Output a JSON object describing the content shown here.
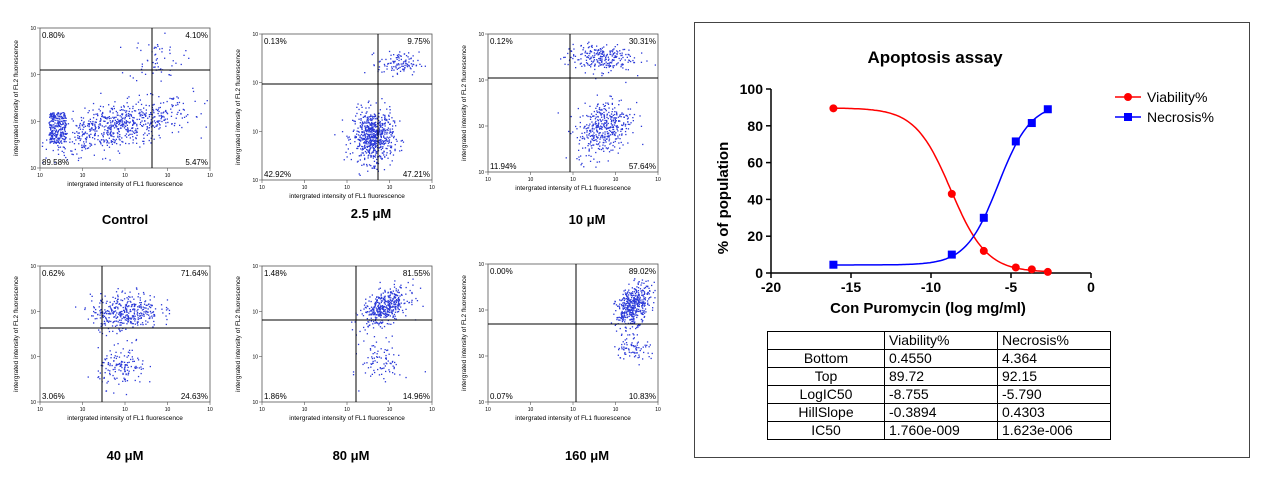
{
  "flow_panels": [
    {
      "caption": "Control",
      "q_ul": "0.80%",
      "q_ur": "4.10%",
      "q_ll": "89.58%",
      "q_lr": "5.47%",
      "xlabel": "intergrated intensity of FL1 fluorescence",
      "ylabel": "intergrated intensity of FL2 fluorescence"
    },
    {
      "caption": "2.5 μM",
      "q_ul": "0.13%",
      "q_ur": "9.75%",
      "q_ll": "42.92%",
      "q_lr": "47.21%",
      "xlabel": "intergrated intensity of FL1 fluorescence",
      "ylabel": "intergrated intensity of FL2 fluorescence"
    },
    {
      "caption": "10 μM",
      "q_ul": "0.12%",
      "q_ur": "30.31%",
      "q_ll": "11.94%",
      "q_lr": "57.64%",
      "xlabel": "intergrated intensity of FL1 fluorescence",
      "ylabel": "intergrated intensity of FL2 fluorescence"
    },
    {
      "caption": "40 μM",
      "q_ul": "0.62%",
      "q_ur": "71.64%",
      "q_ll": "3.06%",
      "q_lr": "24.63%",
      "xlabel": "intergrated intensity of FL1 fluorescence",
      "ylabel": "intergrated intensity of FL2 fluorescence"
    },
    {
      "caption": "80 μM",
      "q_ul": "1.48%",
      "q_ur": "81.55%",
      "q_ll": "1.86%",
      "q_lr": "14.96%",
      "xlabel": "intergrated intensity of FL1 fluorescence",
      "ylabel": "intergrated intensity of FL2 fluorescence"
    },
    {
      "caption": "160 μM",
      "q_ul": "0.00%",
      "q_ur": "89.02%",
      "q_ll": "0.07%",
      "q_lr": "10.83%",
      "xlabel": "intergrated intensity of FL1 fluorescence",
      "ylabel": "intergrated intensity of FL2 fluorescence"
    }
  ],
  "chart_data": [
    {
      "type": "line",
      "title": "Apoptosis assay",
      "xlabel": "Con Puromycin (log mg/ml)",
      "ylabel": "% of population",
      "xlim": [
        -20,
        0
      ],
      "ylim": [
        0,
        100
      ],
      "xticks": [
        -20,
        -15,
        -10,
        -5,
        0
      ],
      "yticks": [
        0,
        20,
        40,
        60,
        80,
        100
      ],
      "legend_position": "top-right",
      "series": [
        {
          "name": "Viability%",
          "color": "#ff0000",
          "marker": "circle",
          "x": [
            -16.1,
            -8.7,
            -6.7,
            -4.7,
            -3.7,
            -2.7
          ],
          "y": [
            89.5,
            43,
            12,
            3,
            2,
            0.6
          ],
          "fit": {
            "bottom": 0.455,
            "top": 89.72,
            "logic50": -8.755,
            "hillslope": -0.3894
          }
        },
        {
          "name": "Necrosis%",
          "color": "#0000ff",
          "marker": "square",
          "x": [
            -16.1,
            -8.7,
            -6.7,
            -4.7,
            -3.7,
            -2.7
          ],
          "y": [
            4.5,
            10,
            30,
            71.5,
            81.5,
            89
          ],
          "fit": {
            "bottom": 4.364,
            "top": 92.15,
            "logic50": -5.79,
            "hillslope": 0.4303
          }
        }
      ]
    },
    {
      "type": "table",
      "columns": [
        "",
        "Viability%",
        "Necrosis%"
      ],
      "rows": [
        {
          "label": "Bottom",
          "viability": "0.4550",
          "necrosis": "4.364"
        },
        {
          "label": "Top",
          "viability": "89.72",
          "necrosis": "92.15"
        },
        {
          "label": "LogIC50",
          "viability": "-8.755",
          "necrosis": "-5.790"
        },
        {
          "label": "HillSlope",
          "viability": "-0.3894",
          "necrosis": "0.4303"
        },
        {
          "label": "IC50",
          "viability": "1.760e-009",
          "necrosis": "1.623e-006"
        }
      ]
    }
  ],
  "colors": {
    "dots": "#2a39d8",
    "viability": "#ff0000",
    "necrosis": "#0000ff"
  }
}
